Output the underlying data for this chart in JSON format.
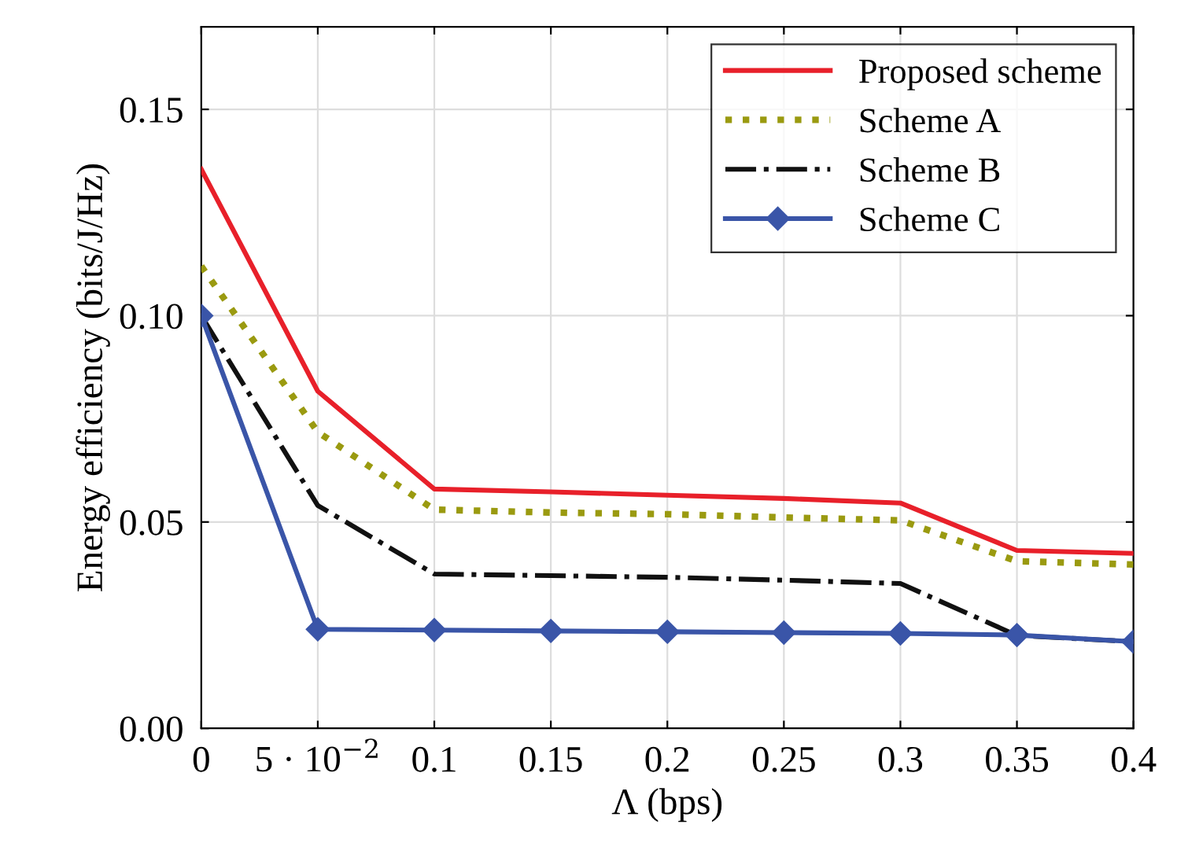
{
  "chart_data": {
    "type": "line",
    "xlabel": "Λ (bps)",
    "ylabel": "Energy efficiency (bits/J/Hz)",
    "x": [
      0,
      0.05,
      0.1,
      0.15,
      0.2,
      0.25,
      0.3,
      0.35,
      0.4
    ],
    "xlim": [
      0,
      0.4
    ],
    "ylim": [
      0,
      0.17
    ],
    "xticks": [
      0,
      {
        "value": 0.05,
        "label": "5 · 10$^{−2}$"
      },
      0.1,
      0.15,
      0.2,
      0.25,
      0.3,
      0.35,
      0.4
    ],
    "yticks": [
      {
        "value": 0,
        "label": "0.00"
      },
      {
        "value": 0.05,
        "label": "0.05"
      },
      {
        "value": 0.1,
        "label": "0.10"
      },
      {
        "value": 0.15,
        "label": "0.15"
      }
    ],
    "grid": true,
    "legend": "top right",
    "series": [
      {
        "name": "Proposed scheme",
        "color": "#e8202a",
        "line_style": "solid",
        "marker": "none",
        "values": [
          0.1355,
          0.0817,
          0.058,
          0.0573,
          0.0565,
          0.0557,
          0.0546,
          0.0431,
          0.0424
        ]
      },
      {
        "name": "Scheme A",
        "color": "#9a9a10",
        "line_style": "dotted",
        "marker": "none",
        "values": [
          0.112,
          0.0718,
          0.053,
          0.0523,
          0.0519,
          0.0511,
          0.0504,
          0.0405,
          0.0397
        ]
      },
      {
        "name": "Scheme B",
        "color": "#111111",
        "line_style": "dashdot",
        "marker": "none",
        "values": [
          0.1,
          0.054,
          0.0374,
          0.037,
          0.0366,
          0.0359,
          0.0351,
          0.0225,
          0.021
        ]
      },
      {
        "name": "Scheme C",
        "color": "#3a55a8",
        "line_style": "solid",
        "marker": "diamond",
        "values": [
          0.1,
          0.024,
          0.0238,
          0.0236,
          0.0234,
          0.0232,
          0.023,
          0.0226,
          0.021
        ]
      }
    ]
  }
}
